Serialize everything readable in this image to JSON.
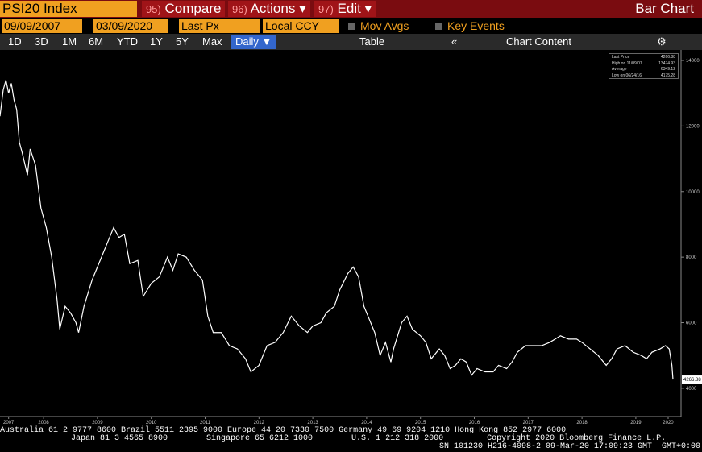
{
  "toolbar": {
    "ticker": "PSI20 Index",
    "menu": [
      {
        "num": "95)",
        "label": "Compare"
      },
      {
        "num": "96)",
        "label": "Actions ▾"
      },
      {
        "num": "97)",
        "label": "Edit ▾"
      }
    ],
    "view": "Bar Chart",
    "start_date": "09/09/2007",
    "end_date": "03/09/2020",
    "field": "Last Px",
    "currency": "Local CCY",
    "mov_avgs": "Mov Avgs",
    "key_events": "Key Events",
    "periods": [
      "1D",
      "3D",
      "1M",
      "6M",
      "YTD",
      "1Y",
      "5Y",
      "Max"
    ],
    "frequency": "Daily ▼",
    "table": "Table",
    "chart_content": "Chart Content"
  },
  "legend": [
    {
      "label": "Last Price",
      "value": 4266.88
    },
    {
      "label": "High on 11/09/07",
      "value": 13474.93
    },
    {
      "label": "Average",
      "value": 6349.12
    },
    {
      "label": "Low on 06/24/16",
      "value": 4175.28
    }
  ],
  "chart_data": {
    "type": "line",
    "x": [
      2007.69,
      2007.75,
      2007.8,
      2007.85,
      2007.9,
      2007.95,
      2008.0,
      2008.05,
      2008.1,
      2008.2,
      2008.25,
      2008.35,
      2008.45,
      2008.55,
      2008.65,
      2008.75,
      2008.8,
      2008.9,
      2009.0,
      2009.1,
      2009.15,
      2009.25,
      2009.4,
      2009.55,
      2009.7,
      2009.8,
      2009.9,
      2010.0,
      2010.1,
      2010.25,
      2010.35,
      2010.5,
      2010.65,
      2010.8,
      2010.9,
      2011.0,
      2011.15,
      2011.3,
      2011.45,
      2011.55,
      2011.65,
      2011.8,
      2011.95,
      2012.1,
      2012.25,
      2012.35,
      2012.5,
      2012.65,
      2012.8,
      2012.95,
      2013.1,
      2013.25,
      2013.4,
      2013.5,
      2013.65,
      2013.75,
      2013.9,
      2014.0,
      2014.15,
      2014.25,
      2014.35,
      2014.45,
      2014.55,
      2014.65,
      2014.75,
      2014.85,
      2014.95,
      2015.0,
      2015.15,
      2015.25,
      2015.35,
      2015.5,
      2015.6,
      2015.7,
      2015.85,
      2015.95,
      2016.05,
      2016.15,
      2016.25,
      2016.35,
      2016.45,
      2016.55,
      2016.7,
      2016.85,
      2016.95,
      2017.1,
      2017.2,
      2017.3,
      2017.45,
      2017.6,
      2017.75,
      2017.9,
      2018.0,
      2018.1,
      2018.25,
      2018.4,
      2018.5,
      2018.65,
      2018.8,
      2018.95,
      2019.05,
      2019.15,
      2019.3,
      2019.45,
      2019.6,
      2019.7,
      2019.8,
      2019.95,
      2020.05,
      2020.12,
      2020.17,
      2020.19
    ],
    "series": [
      {
        "name": "Last Price",
        "color": "#ffffff",
        "values": [
          12300,
          13100,
          13400,
          13000,
          13300,
          12800,
          12500,
          11500,
          11200,
          10500,
          11300,
          10800,
          9500,
          8900,
          8000,
          6700,
          5800,
          6500,
          6300,
          6000,
          5700,
          6500,
          7300,
          7900,
          8500,
          8900,
          8600,
          8700,
          7800,
          7900,
          6800,
          7200,
          7400,
          8000,
          7600,
          8100,
          8000,
          7600,
          7300,
          6200,
          5700,
          5700,
          5300,
          5200,
          4900,
          4500,
          4700,
          5300,
          5400,
          5700,
          6200,
          5900,
          5700,
          5900,
          6000,
          6300,
          6500,
          7000,
          7500,
          7700,
          7400,
          6500,
          6100,
          5700,
          5000,
          5400,
          4800,
          5200,
          6000,
          6200,
          5800,
          5600,
          5400,
          4900,
          5200,
          5000,
          4600,
          4700,
          4900,
          4800,
          4400,
          4600,
          4500,
          4500,
          4700,
          4600,
          4800,
          5100,
          5300,
          5300,
          5300,
          5400,
          5500,
          5600,
          5500,
          5500,
          5400,
          5200,
          5000,
          4700,
          4900,
          5200,
          5300,
          5100,
          5000,
          4900,
          5100,
          5200,
          5300,
          5200,
          4700,
          4266.88
        ]
      }
    ],
    "xlim": [
      2007.69,
      2020.19
    ],
    "xticks": [
      {
        "value": 2007.85,
        "label": "2007"
      },
      {
        "value": 2008.5,
        "label": "2008"
      },
      {
        "value": 2009.5,
        "label": "2009"
      },
      {
        "value": 2010.5,
        "label": "2010"
      },
      {
        "value": 2011.5,
        "label": "2011"
      },
      {
        "value": 2012.5,
        "label": "2012"
      },
      {
        "value": 2013.5,
        "label": "2013"
      },
      {
        "value": 2014.5,
        "label": "2014"
      },
      {
        "value": 2015.5,
        "label": "2015"
      },
      {
        "value": 2016.5,
        "label": "2016"
      },
      {
        "value": 2017.5,
        "label": "2017"
      },
      {
        "value": 2018.5,
        "label": "2018"
      },
      {
        "value": 2019.5,
        "label": "2019"
      },
      {
        "value": 2020.1,
        "label": "2020"
      }
    ],
    "ylim": [
      3260,
      14320
    ],
    "yticks": [
      4000,
      6000,
      8000,
      10000,
      12000,
      14000
    ]
  },
  "footer": [
    "Australia 61 2 9777 8600 Brazil 5511 2395 9000 Europe 44 20 7330 7500 Germany 49 69 9204 1210 Hong Kong 852 2977 6000",
    "Japan 81 3 4565 8900        Singapore 65 6212 1000        U.S. 1 212 318 2000         Copyright 2020 Bloomberg Finance L.P.",
    "SN 101230 H216-4098-2 09-Mar-20 17:09:23 GMT  GMT+0:00"
  ]
}
